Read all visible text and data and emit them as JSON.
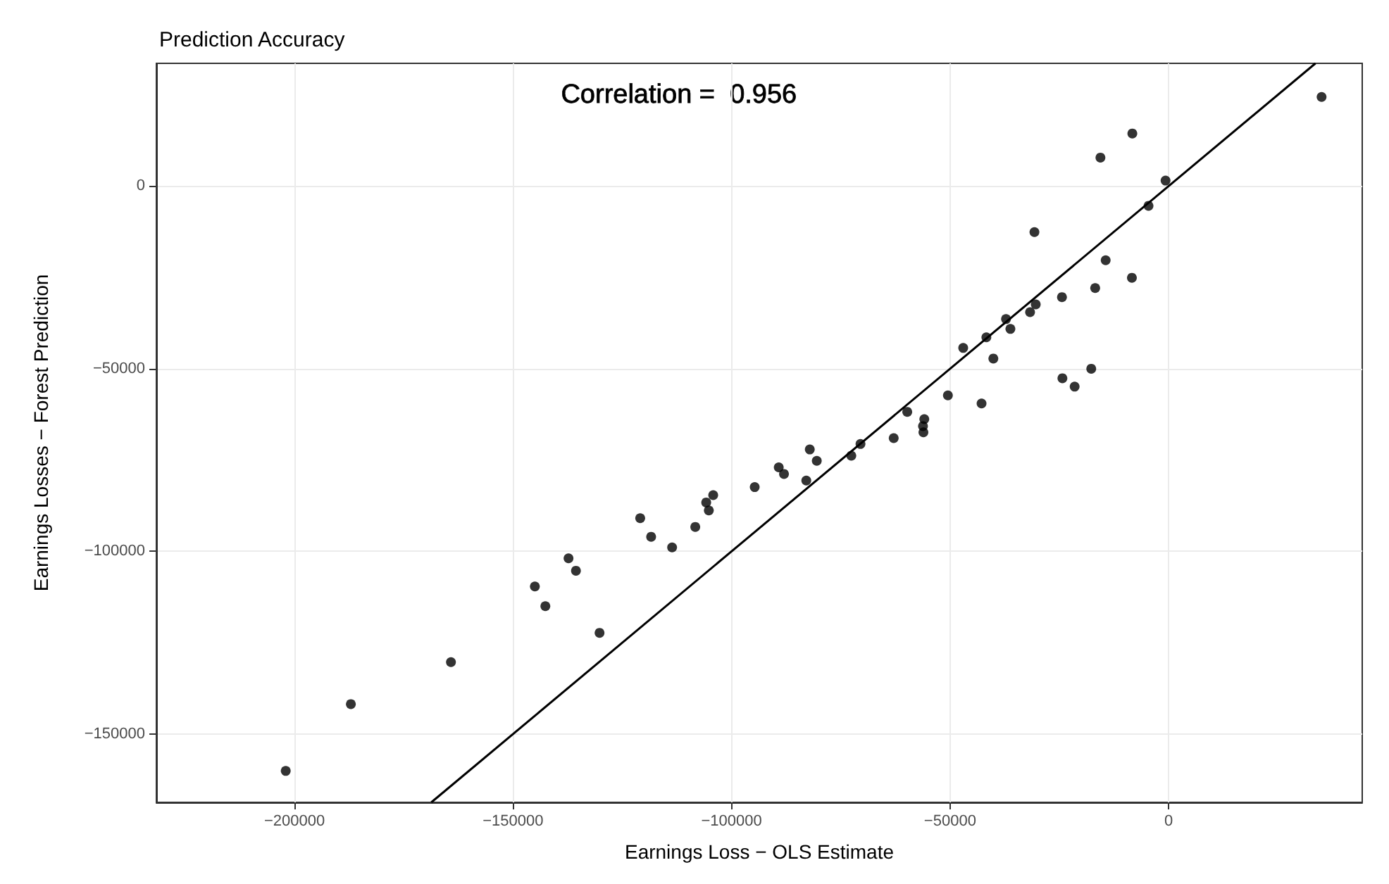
{
  "chart_data": {
    "type": "scatter",
    "title": "Prediction Accuracy",
    "xlabel": "Earnings Loss − OLS Estimate",
    "ylabel": "Earnings Losses − Forest Prediction",
    "annotations": [
      "Correlation =  0.956"
    ],
    "series": [
      {
        "color": "#000000",
        "marker": "circle",
        "x": [
          -202000,
          -187100,
          -164200,
          -145000,
          -142600,
          -137300,
          -135600,
          -130200,
          -120900,
          -118400,
          -113600,
          -108300,
          -105800,
          -105200,
          -104200,
          -94700,
          -89200,
          -88000,
          -82900,
          -82100,
          -80500,
          -72600,
          -70500,
          -62900,
          -59800,
          -55900,
          -56200,
          -56100,
          -50500,
          -47000,
          -42800,
          -41700,
          -40100,
          -37200,
          -36200,
          -31700,
          -30400,
          -30700,
          -24300,
          -21500,
          -17700,
          -24400,
          -16800,
          -15600,
          -14400,
          -8400,
          -8300,
          -4600,
          -700,
          35000
        ],
        "values": [
          -160100,
          -141800,
          -130300,
          -109600,
          -115000,
          -101900,
          -105300,
          -122300,
          -90900,
          -96000,
          -98900,
          -93300,
          -86600,
          -88800,
          -84600,
          -82400,
          -77000,
          -78800,
          -80600,
          -72100,
          -75200,
          -73800,
          -70600,
          -69000,
          -61800,
          -63800,
          -65700,
          -67400,
          -57300,
          -44300,
          -59500,
          -41400,
          -47200,
          -36400,
          -39100,
          -34500,
          -32400,
          -12600,
          -52600,
          -54900,
          -50000,
          -30400,
          -27900,
          7800,
          -20300,
          -25100,
          14400,
          -5400,
          1500,
          24400
        ]
      },
      {
        "type": "line",
        "color": "#000000",
        "marker": "none",
        "line_style": "solid",
        "x": [
          -168700,
          33600
        ],
        "values": [
          -168700,
          33600
        ]
      }
    ],
    "xlim": [
      -231600,
      44300
    ],
    "ylim": [
      -168700,
      33600
    ],
    "xticks": [
      {
        "value": -200000,
        "label": "−200000"
      },
      {
        "value": -150000,
        "label": "−150000"
      },
      {
        "value": -100000,
        "label": "−100000"
      },
      {
        "value": -50000,
        "label": "−50000"
      },
      0
    ],
    "yticks": [
      {
        "value": -150000,
        "label": "−150000"
      },
      {
        "value": -100000,
        "label": "−100000"
      },
      {
        "value": -50000,
        "label": "−50000"
      },
      0
    ],
    "grid": true
  }
}
